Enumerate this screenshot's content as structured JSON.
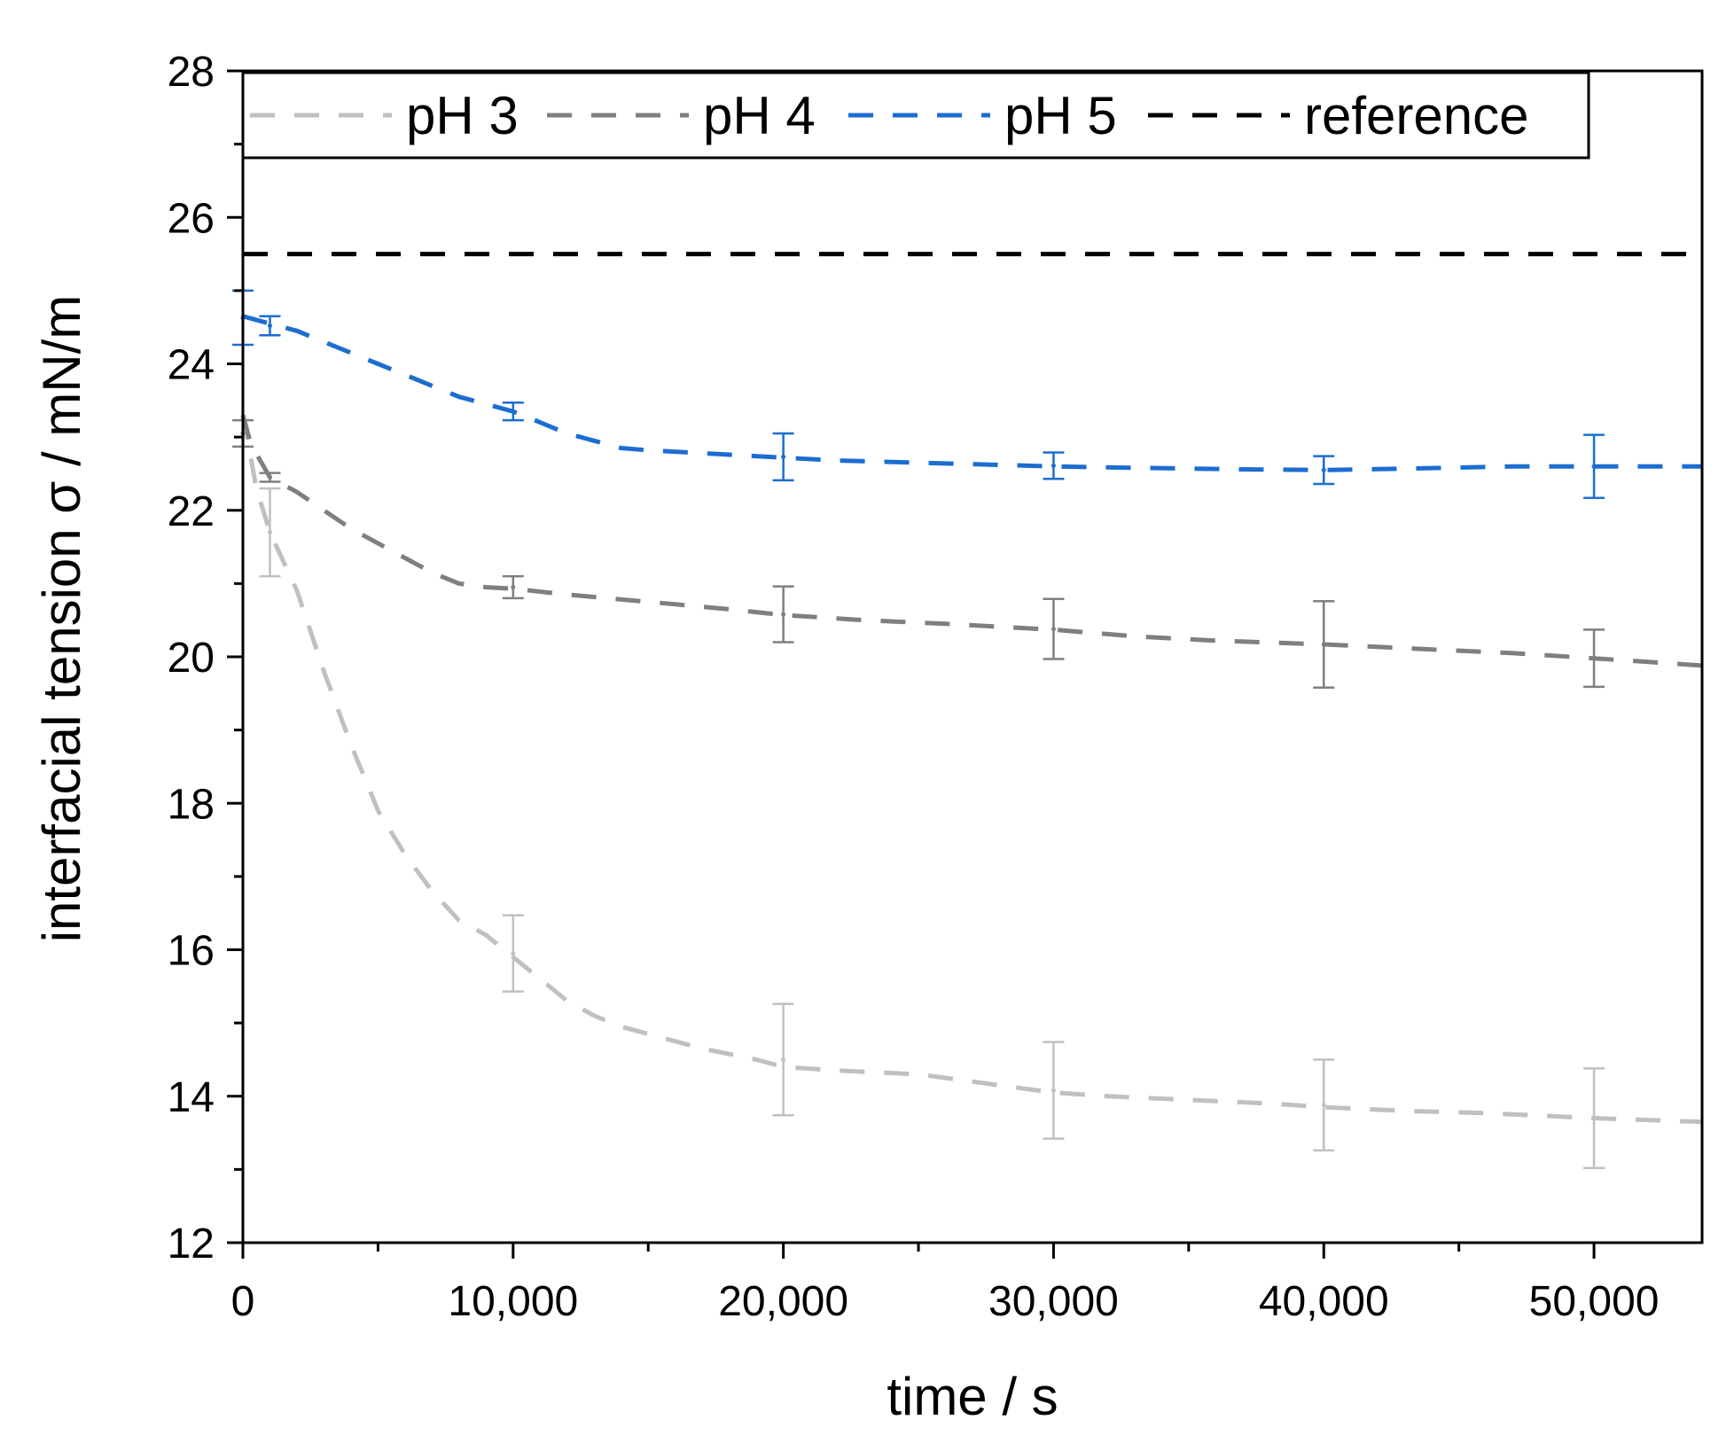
{
  "chart_data": {
    "type": "line",
    "title": "",
    "xlabel": "time / s",
    "ylabel": "interfacial tension σ / mN/m",
    "xlim": [
      0,
      54000
    ],
    "ylim": [
      12,
      28
    ],
    "x_ticks": [
      0,
      10000,
      20000,
      30000,
      40000,
      50000
    ],
    "x_tick_labels": [
      "0",
      "10,000",
      "20,000",
      "30,000",
      "40,000",
      "50,000"
    ],
    "x_minor_ticks": [
      5000,
      15000,
      25000,
      35000,
      45000
    ],
    "y_ticks": [
      12,
      14,
      16,
      18,
      20,
      22,
      24,
      26,
      28
    ],
    "y_tick_labels": [
      "12",
      "14",
      "16",
      "18",
      "20",
      "22",
      "24",
      "26",
      "28"
    ],
    "y_minor_ticks": [
      13,
      15,
      17,
      19,
      21,
      23,
      25,
      27
    ],
    "grid": false,
    "legend_position": "top",
    "series": [
      {
        "name": "pH 3",
        "color": "#c0c0c0",
        "curve": [
          [
            0,
            23.3
          ],
          [
            200,
            22.9
          ],
          [
            500,
            22.3
          ],
          [
            1000,
            21.7
          ],
          [
            2000,
            20.9
          ],
          [
            3000,
            19.8
          ],
          [
            4000,
            18.8
          ],
          [
            5000,
            17.9
          ],
          [
            6000,
            17.3
          ],
          [
            7000,
            16.8
          ],
          [
            8000,
            16.4
          ],
          [
            9000,
            16.2
          ],
          [
            10000,
            15.9
          ],
          [
            11000,
            15.6
          ],
          [
            12000,
            15.3
          ],
          [
            13000,
            15.1
          ],
          [
            14000,
            14.95
          ],
          [
            15000,
            14.85
          ],
          [
            17000,
            14.65
          ],
          [
            19000,
            14.5
          ],
          [
            20000,
            14.4
          ],
          [
            22000,
            14.35
          ],
          [
            25000,
            14.3
          ],
          [
            28000,
            14.15
          ],
          [
            30000,
            14.05
          ],
          [
            32000,
            14.0
          ],
          [
            35000,
            13.95
          ],
          [
            38000,
            13.9
          ],
          [
            40000,
            13.85
          ],
          [
            43000,
            13.8
          ],
          [
            46000,
            13.77
          ],
          [
            50000,
            13.7
          ],
          [
            54000,
            13.65
          ]
        ],
        "points": [
          {
            "x": 1000,
            "y": 21.7,
            "err": 0.6
          },
          {
            "x": 10000,
            "y": 15.95,
            "err": 0.52
          },
          {
            "x": 20000,
            "y": 14.5,
            "err": 0.76
          },
          {
            "x": 30000,
            "y": 14.08,
            "err": 0.66
          },
          {
            "x": 40000,
            "y": 13.88,
            "err": 0.62
          },
          {
            "x": 50000,
            "y": 13.7,
            "err": 0.68
          }
        ]
      },
      {
        "name": "pH 4",
        "color": "#7f7f7f",
        "curve": [
          [
            0,
            23.3
          ],
          [
            300,
            22.9
          ],
          [
            1000,
            22.45
          ],
          [
            2000,
            22.25
          ],
          [
            3000,
            22.0
          ],
          [
            4000,
            21.75
          ],
          [
            5000,
            21.55
          ],
          [
            6000,
            21.35
          ],
          [
            7000,
            21.15
          ],
          [
            8000,
            21.0
          ],
          [
            9000,
            20.95
          ],
          [
            10000,
            20.93
          ],
          [
            12000,
            20.85
          ],
          [
            15000,
            20.75
          ],
          [
            18000,
            20.65
          ],
          [
            20000,
            20.57
          ],
          [
            23000,
            20.5
          ],
          [
            26000,
            20.45
          ],
          [
            30000,
            20.37
          ],
          [
            33000,
            20.28
          ],
          [
            36000,
            20.22
          ],
          [
            40000,
            20.17
          ],
          [
            44000,
            20.1
          ],
          [
            47000,
            20.05
          ],
          [
            50000,
            19.98
          ],
          [
            54000,
            19.88
          ]
        ],
        "points": [
          {
            "x": 0,
            "y": 23.05,
            "err": 0.18
          },
          {
            "x": 1000,
            "y": 22.45,
            "err": 0.06
          },
          {
            "x": 10000,
            "y": 20.95,
            "err": 0.15
          },
          {
            "x": 20000,
            "y": 20.58,
            "err": 0.38
          },
          {
            "x": 30000,
            "y": 20.38,
            "err": 0.41
          },
          {
            "x": 40000,
            "y": 20.17,
            "err": 0.59
          },
          {
            "x": 50000,
            "y": 19.98,
            "err": 0.39
          }
        ]
      },
      {
        "name": "pH 5",
        "color": "#1c6dd0",
        "curve": [
          [
            0,
            24.65
          ],
          [
            1000,
            24.55
          ],
          [
            2000,
            24.45
          ],
          [
            3000,
            24.3
          ],
          [
            4000,
            24.15
          ],
          [
            5000,
            24.0
          ],
          [
            6000,
            23.85
          ],
          [
            7000,
            23.7
          ],
          [
            8000,
            23.55
          ],
          [
            9000,
            23.45
          ],
          [
            10000,
            23.35
          ],
          [
            11000,
            23.2
          ],
          [
            12000,
            23.05
          ],
          [
            13000,
            22.95
          ],
          [
            14000,
            22.85
          ],
          [
            15000,
            22.82
          ],
          [
            17000,
            22.78
          ],
          [
            20000,
            22.72
          ],
          [
            22000,
            22.68
          ],
          [
            25000,
            22.65
          ],
          [
            28000,
            22.62
          ],
          [
            30000,
            22.6
          ],
          [
            33000,
            22.58
          ],
          [
            37000,
            22.56
          ],
          [
            40000,
            22.55
          ],
          [
            43000,
            22.57
          ],
          [
            47000,
            22.6
          ],
          [
            50000,
            22.6
          ],
          [
            54000,
            22.6
          ]
        ],
        "points": [
          {
            "x": 0,
            "y": 24.63,
            "err": 0.37
          },
          {
            "x": 1000,
            "y": 24.52,
            "err": 0.13
          },
          {
            "x": 10000,
            "y": 23.35,
            "err": 0.12
          },
          {
            "x": 20000,
            "y": 22.73,
            "err": 0.32
          },
          {
            "x": 30000,
            "y": 22.61,
            "err": 0.18
          },
          {
            "x": 40000,
            "y": 22.55,
            "err": 0.19
          },
          {
            "x": 50000,
            "y": 22.6,
            "err": 0.43
          }
        ]
      },
      {
        "name": "reference",
        "color": "#000000",
        "curve": [
          [
            0,
            25.5
          ],
          [
            54000,
            25.5
          ]
        ],
        "points": []
      }
    ]
  }
}
